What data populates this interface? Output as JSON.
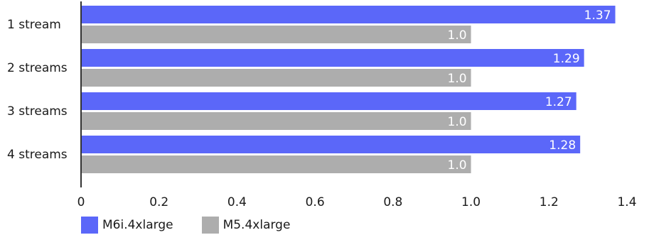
{
  "chart_data": {
    "type": "bar",
    "orientation": "horizontal",
    "categories": [
      "1 stream",
      "2 streams",
      "3 streams",
      "4 streams"
    ],
    "series": [
      {
        "name": "M6i.4xlarge",
        "color": "#5b67f9",
        "values": [
          1.37,
          1.29,
          1.27,
          1.28
        ],
        "labels": [
          "1.37",
          "1.29",
          "1.27",
          "1.28"
        ]
      },
      {
        "name": "M5.4xlarge",
        "color": "#adadad",
        "values": [
          1.0,
          1.0,
          1.0,
          1.0
        ],
        "labels": [
          "1.0",
          "1.0",
          "1.0",
          "1.0"
        ]
      }
    ],
    "xlim": [
      0,
      1.4
    ],
    "xticks": [
      "0",
      "0.2",
      "0.4",
      "0.6",
      "0.8",
      "1.0",
      "1.2",
      "1.4"
    ],
    "grid": false,
    "legend_position": "bottom-left",
    "title": "",
    "xlabel": "",
    "ylabel": ""
  }
}
